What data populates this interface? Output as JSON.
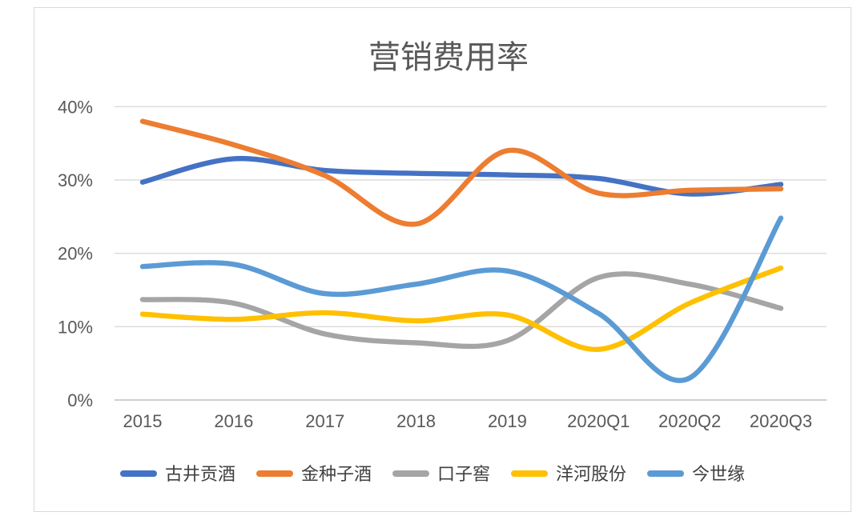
{
  "chart_data": {
    "type": "line",
    "title": "营销费用率",
    "categories": [
      "2015",
      "2016",
      "2017",
      "2018",
      "2019",
      "2020Q1",
      "2020Q2",
      "2020Q3"
    ],
    "series": [
      {
        "name": "古井贡酒",
        "color": "#4472C4",
        "values": [
          29.7,
          32.9,
          31.3,
          30.9,
          30.7,
          30.2,
          28.1,
          29.4
        ]
      },
      {
        "name": "金种子酒",
        "color": "#ED7D31",
        "values": [
          38.0,
          34.8,
          30.6,
          24.0,
          34.0,
          28.2,
          28.6,
          28.8
        ]
      },
      {
        "name": "口子窖",
        "color": "#A5A5A5",
        "values": [
          13.7,
          13.2,
          9.0,
          7.8,
          8.1,
          16.7,
          15.8,
          12.5
        ]
      },
      {
        "name": "洋河股份",
        "color": "#FFC000",
        "values": [
          11.7,
          11.0,
          11.9,
          10.8,
          11.6,
          6.9,
          13.2,
          18.0
        ]
      },
      {
        "name": "今世缘",
        "color": "#5B9BD5",
        "values": [
          18.2,
          18.5,
          14.5,
          15.8,
          17.6,
          11.8,
          3.0,
          24.8
        ]
      }
    ],
    "xlabel": "",
    "ylabel": "",
    "ylim": [
      0,
      40
    ],
    "ytick_step": 10,
    "ytick_labels": [
      "0%",
      "10%",
      "20%",
      "30%",
      "40%"
    ],
    "grid": true,
    "smooth": true,
    "legend_position": "bottom"
  },
  "styles": {
    "text_color": "#595959",
    "grid_color": "#d9d9d9",
    "axis_line_color": "#bfbfbf",
    "card_border_color": "#d9d9d9",
    "background": "#ffffff"
  }
}
